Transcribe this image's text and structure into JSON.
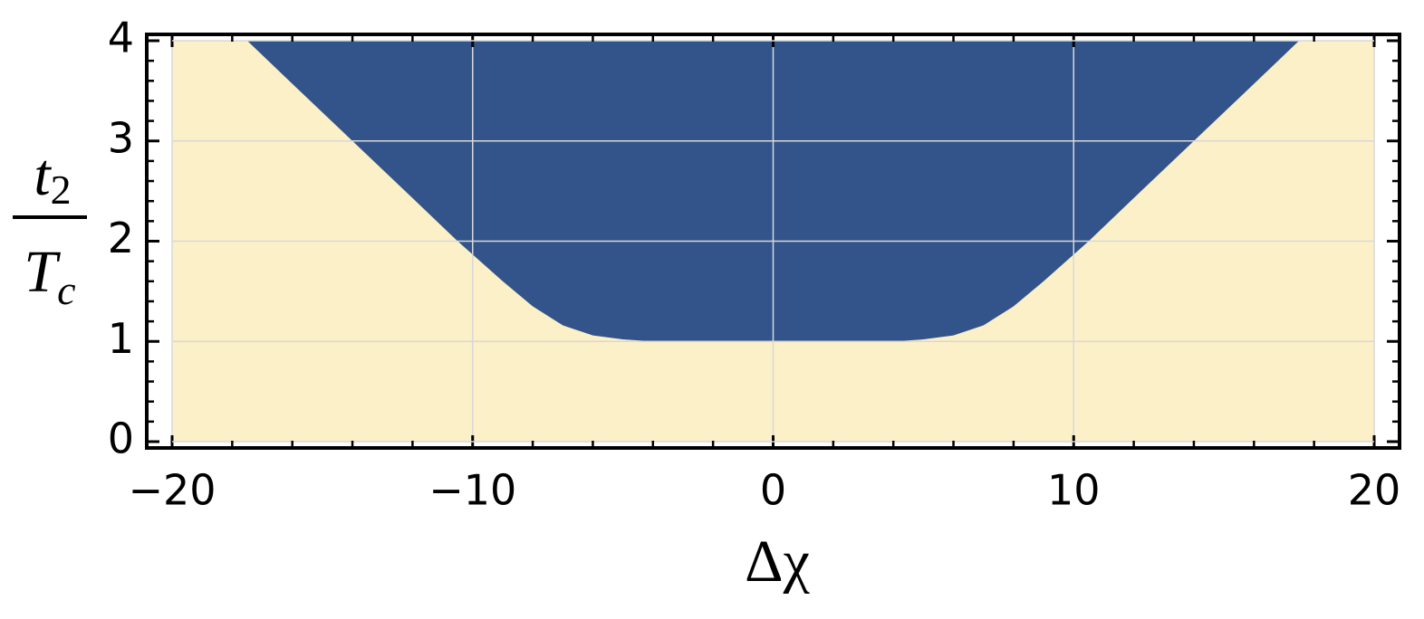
{
  "chart_data": {
    "type": "area",
    "x": [
      -17.5,
      -16,
      -14,
      -12,
      -10.5,
      -9,
      -8,
      -7,
      -6,
      -5,
      -4,
      0,
      4,
      5,
      6,
      7,
      8,
      9,
      10.5,
      12,
      14,
      16,
      17.5
    ],
    "values": [
      4,
      3.57,
      3,
      2.43,
      2,
      1.6,
      1.35,
      1.16,
      1.06,
      1.02,
      1.0,
      1.0,
      1.0,
      1.02,
      1.06,
      1.16,
      1.35,
      1.6,
      2,
      2.43,
      3,
      3.57,
      4
    ],
    "color": "#32548a",
    "background_color": "#fcf0c8",
    "xlim": [
      -20,
      20
    ],
    "ylim": [
      0,
      4
    ],
    "xticks": [
      {
        "value": -20,
        "label": "−20"
      },
      {
        "value": -10,
        "label": "−10"
      },
      0,
      10,
      20
    ],
    "yticks": [
      0,
      1,
      2,
      3,
      4
    ],
    "xminorticks": [
      -18,
      -16,
      -14,
      -12,
      -8,
      -6,
      -4,
      -2,
      2,
      4,
      6,
      8,
      12,
      14,
      16,
      18
    ],
    "yminorticks": [
      0.2,
      0.4,
      0.6,
      0.8,
      1.2,
      1.4,
      1.6,
      1.8,
      2.2,
      2.4,
      2.6,
      2.8,
      3.2,
      3.4,
      3.6,
      3.8
    ],
    "grid": true,
    "xlabel": "Δχ",
    "ylabel": {
      "numerator": {
        "base": "t",
        "sub": "2"
      },
      "denominator": {
        "base": "T",
        "sub": "c"
      }
    }
  }
}
